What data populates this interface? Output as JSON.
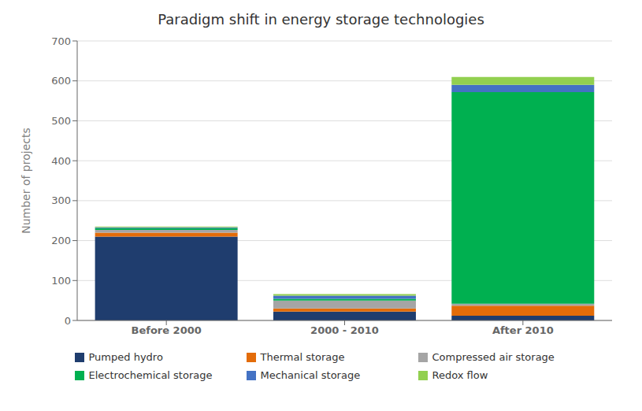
{
  "chart_data": {
    "type": "bar",
    "title": "Paradigm shift in energy storage technologies",
    "categories": [
      "Before 2000",
      "2000 - 2010",
      "After 2010"
    ],
    "series": [
      {
        "name": "Pumped hydro",
        "color": "#1f3d6e",
        "values": [
          210,
          22,
          12
        ]
      },
      {
        "name": "Thermal storage",
        "color": "#e36c09",
        "values": [
          10,
          8,
          25
        ]
      },
      {
        "name": "Compressed air storage",
        "color": "#a5a5a5",
        "values": [
          7,
          20,
          5
        ]
      },
      {
        "name": "Electrochemical storage",
        "color": "#00b050",
        "values": [
          4,
          4,
          530
        ]
      },
      {
        "name": "Mechanical storage",
        "color": "#4472c4",
        "values": [
          2,
          8,
          18
        ]
      },
      {
        "name": "Redox flow",
        "color": "#92d050",
        "values": [
          2,
          4,
          20
        ]
      }
    ],
    "ylabel": "Number of projects",
    "ylim": [
      0,
      700
    ],
    "yticks": [
      0,
      100,
      200,
      300,
      400,
      500,
      600,
      700
    ],
    "stacked": true,
    "grid": true,
    "legend": "bottom"
  }
}
